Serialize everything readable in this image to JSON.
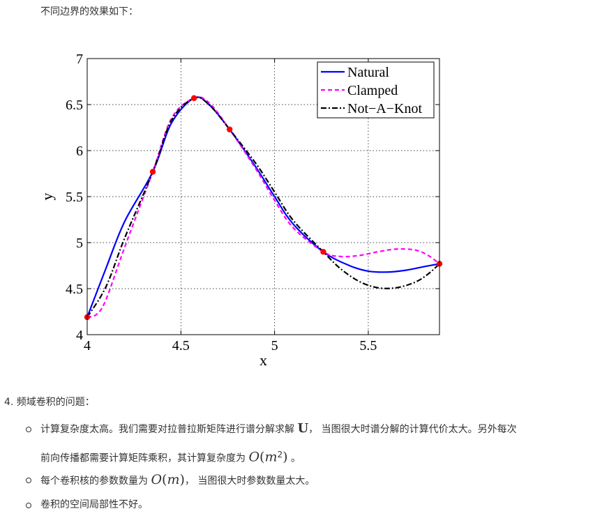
{
  "intro_text": "不同边界的效果如下：",
  "chart_data": {
    "type": "line",
    "xlabel": "x",
    "ylabel": "y",
    "xlim": [
      4,
      5.88
    ],
    "ylim": [
      4,
      7
    ],
    "xticks": [
      "4",
      "4.5",
      "5",
      "5.5"
    ],
    "yticks": [
      "4",
      "4.5",
      "5",
      "5.5",
      "6",
      "6.5",
      "7"
    ],
    "grid": true,
    "legend_position": "top-right",
    "knots": {
      "x": [
        4.0,
        4.35,
        4.57,
        4.76,
        5.26,
        5.88
      ],
      "y": [
        4.19,
        5.77,
        6.57,
        6.23,
        4.9,
        4.77
      ],
      "color": "#ff0000"
    },
    "series": [
      {
        "name": "Natural",
        "color": "#0000ff",
        "dash": "solid",
        "x": [
          4.0,
          4.1,
          4.2,
          4.35,
          4.45,
          4.57,
          4.65,
          4.76,
          4.9,
          5.0,
          5.1,
          5.26,
          5.4,
          5.5,
          5.6,
          5.7,
          5.8,
          5.88
        ],
        "y": [
          4.19,
          4.72,
          5.23,
          5.77,
          6.3,
          6.57,
          6.5,
          6.23,
          5.82,
          5.5,
          5.2,
          4.9,
          4.75,
          4.69,
          4.68,
          4.7,
          4.74,
          4.77
        ]
      },
      {
        "name": "Clamped",
        "color": "#ff00ff",
        "dash": "dashed",
        "x": [
          4.0,
          4.05,
          4.1,
          4.2,
          4.35,
          4.45,
          4.57,
          4.65,
          4.76,
          4.9,
          5.0,
          5.1,
          5.26,
          5.35,
          5.45,
          5.55,
          5.65,
          5.75,
          5.82,
          5.88
        ],
        "y": [
          4.19,
          4.22,
          4.38,
          4.95,
          5.77,
          6.35,
          6.57,
          6.52,
          6.23,
          5.8,
          5.46,
          5.16,
          4.9,
          4.85,
          4.86,
          4.9,
          4.93,
          4.92,
          4.86,
          4.77
        ]
      },
      {
        "name": "Not−A−Knot",
        "color": "#000000",
        "dash": "dashdot",
        "x": [
          4.0,
          4.1,
          4.2,
          4.35,
          4.45,
          4.57,
          4.65,
          4.76,
          4.9,
          5.0,
          5.1,
          5.26,
          5.35,
          5.45,
          5.55,
          5.65,
          5.75,
          5.82,
          5.88
        ],
        "y": [
          4.19,
          4.52,
          5.05,
          5.77,
          6.33,
          6.57,
          6.5,
          6.23,
          5.86,
          5.55,
          5.24,
          4.9,
          4.72,
          4.58,
          4.51,
          4.51,
          4.57,
          4.66,
          4.77
        ]
      }
    ]
  },
  "section4_title": "4. 频域卷积的问题：",
  "bullets": {
    "b1_part1": "计算复杂度太高。我们需要对拉普拉斯矩阵进行谱分解求解 ",
    "b1_math": "U",
    "b1_part2": "， 当图很大时谱分解的计算代价太大。另外每次",
    "b1_line2_text": "前向传播都需要计算矩阵乘积，其计算复杂度为 ",
    "b1_math2_O": "O",
    "b1_math2_m": "m",
    "b1_math2_exp": "2",
    "b1_line2_end": " 。",
    "b2_text": "每个卷积核的参数数量为 ",
    "b2_math_O": "O",
    "b2_math_m": "m",
    "b2_end": "， 当图很大时参数数量太大。",
    "b3_text": "卷积的空间局部性不好。"
  }
}
